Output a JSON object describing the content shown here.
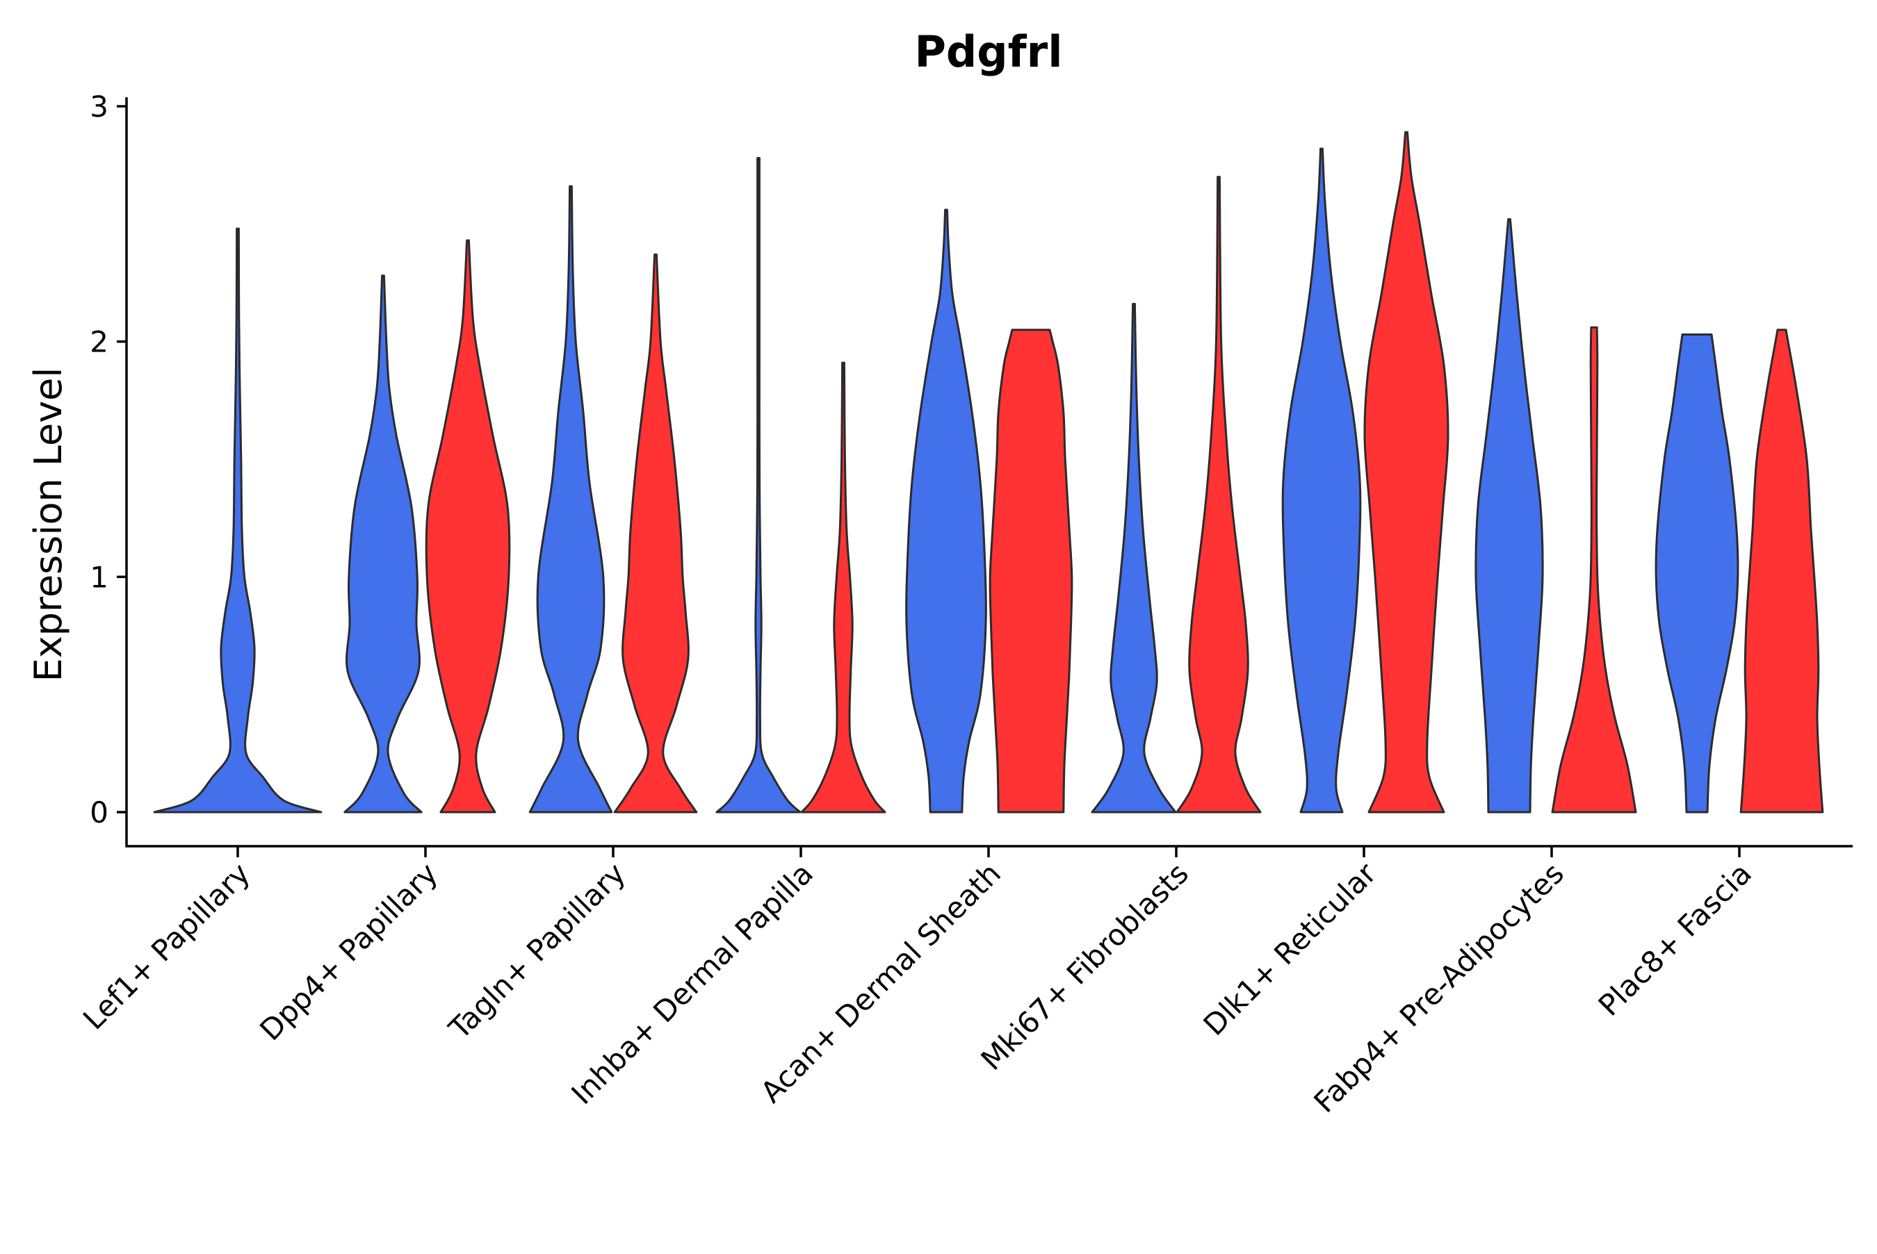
{
  "chart_data": {
    "type": "violin",
    "title": "Pdgfrl",
    "xlabel": "",
    "ylabel": "Expression Level",
    "ylim": [
      -0.15,
      3.05
    ],
    "yticks": [
      "0",
      "1",
      "2",
      "3"
    ],
    "grid": false,
    "legend": "none",
    "group_colors": [
      "#4370eb",
      "#ff3333"
    ],
    "categories": [
      "Lef1+ Papillary",
      "Dpp4+ Papillary",
      "Tagln+ Papillary",
      "Inhba+ Dermal Papilla",
      "Acan+ Dermal Sheath",
      "Mki67+ Fibroblasts",
      "Dlk1+ Reticular",
      "Fabp4+ Pre-Adipocytes",
      "Plac8+ Fascia"
    ],
    "violins": [
      {
        "category": "Lef1+ Papillary",
        "group": 1,
        "max": 2.48,
        "profile": [
          [
            0,
            1.0
          ],
          [
            0.05,
            0.55
          ],
          [
            0.15,
            0.3
          ],
          [
            0.25,
            0.1
          ],
          [
            0.4,
            0.12
          ],
          [
            0.55,
            0.18
          ],
          [
            0.7,
            0.2
          ],
          [
            0.85,
            0.15
          ],
          [
            1.0,
            0.08
          ],
          [
            1.2,
            0.05
          ],
          [
            1.5,
            0.04
          ],
          [
            1.8,
            0.025
          ],
          [
            2.1,
            0.015
          ],
          [
            2.48,
            0.0
          ]
        ]
      },
      {
        "category": "Dpp4+ Papillary",
        "group": 1,
        "max": 2.28,
        "profile": [
          [
            0,
            0.92
          ],
          [
            0.08,
            0.5
          ],
          [
            0.25,
            0.12
          ],
          [
            0.4,
            0.35
          ],
          [
            0.6,
            0.85
          ],
          [
            0.8,
            0.8
          ],
          [
            1.0,
            0.82
          ],
          [
            1.3,
            0.68
          ],
          [
            1.6,
            0.32
          ],
          [
            1.8,
            0.15
          ],
          [
            2.0,
            0.08
          ],
          [
            2.28,
            0.0
          ]
        ]
      },
      {
        "category": "Dpp4+ Papillary",
        "group": 2,
        "max": 2.43,
        "profile": [
          [
            0,
            0.65
          ],
          [
            0.1,
            0.35
          ],
          [
            0.25,
            0.2
          ],
          [
            0.45,
            0.5
          ],
          [
            0.7,
            0.8
          ],
          [
            1.0,
            0.98
          ],
          [
            1.3,
            0.95
          ],
          [
            1.6,
            0.6
          ],
          [
            1.9,
            0.28
          ],
          [
            2.1,
            0.12
          ],
          [
            2.43,
            0.0
          ]
        ]
      },
      {
        "category": "Tagln+ Papillary",
        "group": 1,
        "max": 2.66,
        "profile": [
          [
            0,
            0.98
          ],
          [
            0.1,
            0.7
          ],
          [
            0.3,
            0.18
          ],
          [
            0.5,
            0.4
          ],
          [
            0.7,
            0.72
          ],
          [
            1.0,
            0.78
          ],
          [
            1.4,
            0.45
          ],
          [
            1.7,
            0.3
          ],
          [
            2.0,
            0.12
          ],
          [
            2.3,
            0.05
          ],
          [
            2.66,
            0.0
          ]
        ]
      },
      {
        "category": "Tagln+ Papillary",
        "group": 2,
        "max": 2.37,
        "profile": [
          [
            0,
            0.98
          ],
          [
            0.1,
            0.6
          ],
          [
            0.25,
            0.18
          ],
          [
            0.45,
            0.5
          ],
          [
            0.65,
            0.78
          ],
          [
            0.85,
            0.72
          ],
          [
            1.0,
            0.65
          ],
          [
            1.2,
            0.6
          ],
          [
            1.5,
            0.45
          ],
          [
            1.8,
            0.25
          ],
          [
            2.0,
            0.12
          ],
          [
            2.37,
            0.0
          ]
        ]
      },
      {
        "category": "Inhba+ Dermal Papilla",
        "group": 1,
        "max": 2.78,
        "profile": [
          [
            0,
            1.0
          ],
          [
            0.05,
            0.7
          ],
          [
            0.15,
            0.35
          ],
          [
            0.25,
            0.08
          ],
          [
            0.4,
            0.04
          ],
          [
            0.6,
            0.05
          ],
          [
            0.8,
            0.07
          ],
          [
            1.0,
            0.05
          ],
          [
            1.3,
            0.03
          ],
          [
            1.6,
            0.02
          ],
          [
            2.0,
            0.01
          ],
          [
            2.78,
            0.0
          ]
        ]
      },
      {
        "category": "Inhba+ Dermal Papilla",
        "group": 2,
        "max": 1.91,
        "profile": [
          [
            0,
            1.0
          ],
          [
            0.05,
            0.75
          ],
          [
            0.15,
            0.45
          ],
          [
            0.28,
            0.2
          ],
          [
            0.4,
            0.15
          ],
          [
            0.6,
            0.18
          ],
          [
            0.8,
            0.22
          ],
          [
            1.0,
            0.16
          ],
          [
            1.2,
            0.08
          ],
          [
            1.5,
            0.04
          ],
          [
            1.91,
            0.0
          ]
        ]
      },
      {
        "category": "Acan+ Dermal Sheath",
        "group": 1,
        "max": 2.56,
        "profile": [
          [
            0,
            0.38
          ],
          [
            0.15,
            0.42
          ],
          [
            0.3,
            0.55
          ],
          [
            0.5,
            0.82
          ],
          [
            0.8,
            0.95
          ],
          [
            1.1,
            0.92
          ],
          [
            1.4,
            0.82
          ],
          [
            1.7,
            0.62
          ],
          [
            2.0,
            0.35
          ],
          [
            2.2,
            0.15
          ],
          [
            2.4,
            0.06
          ],
          [
            2.56,
            0.0
          ]
        ]
      },
      {
        "category": "Acan+ Dermal Sheath",
        "group": 2,
        "max": 2.05,
        "profile": [
          [
            0,
            0.78
          ],
          [
            0.2,
            0.8
          ],
          [
            0.4,
            0.86
          ],
          [
            0.6,
            0.92
          ],
          [
            0.8,
            0.96
          ],
          [
            1.0,
            0.98
          ],
          [
            1.2,
            0.92
          ],
          [
            1.5,
            0.82
          ],
          [
            1.7,
            0.78
          ],
          [
            1.9,
            0.65
          ],
          [
            2.0,
            0.52
          ],
          [
            2.05,
            0.45
          ]
        ]
      },
      {
        "category": "Mki67+ Fibroblasts",
        "group": 1,
        "max": 2.16,
        "profile": [
          [
            0,
            1.0
          ],
          [
            0.1,
            0.6
          ],
          [
            0.25,
            0.25
          ],
          [
            0.4,
            0.4
          ],
          [
            0.55,
            0.55
          ],
          [
            0.7,
            0.5
          ],
          [
            0.9,
            0.38
          ],
          [
            1.2,
            0.22
          ],
          [
            1.5,
            0.12
          ],
          [
            1.8,
            0.06
          ],
          [
            2.16,
            0.0
          ]
        ]
      },
      {
        "category": "Mki67+ Fibroblasts",
        "group": 2,
        "max": 2.7,
        "profile": [
          [
            0,
            1.0
          ],
          [
            0.1,
            0.65
          ],
          [
            0.25,
            0.4
          ],
          [
            0.4,
            0.55
          ],
          [
            0.6,
            0.7
          ],
          [
            0.8,
            0.65
          ],
          [
            1.0,
            0.52
          ],
          [
            1.3,
            0.32
          ],
          [
            1.6,
            0.18
          ],
          [
            2.0,
            0.06
          ],
          [
            2.7,
            0.0
          ]
        ]
      },
      {
        "category": "Dlk1+ Reticular",
        "group": 1,
        "max": 2.82,
        "profile": [
          [
            0,
            0.5
          ],
          [
            0.1,
            0.35
          ],
          [
            0.25,
            0.4
          ],
          [
            0.5,
            0.6
          ],
          [
            0.8,
            0.8
          ],
          [
            1.1,
            0.9
          ],
          [
            1.4,
            0.92
          ],
          [
            1.7,
            0.75
          ],
          [
            2.0,
            0.45
          ],
          [
            2.3,
            0.22
          ],
          [
            2.6,
            0.08
          ],
          [
            2.82,
            0.0
          ]
        ]
      },
      {
        "category": "Dlk1+ Reticular",
        "group": 2,
        "max": 2.89,
        "profile": [
          [
            0,
            0.9
          ],
          [
            0.15,
            0.55
          ],
          [
            0.3,
            0.5
          ],
          [
            0.6,
            0.6
          ],
          [
            1.0,
            0.75
          ],
          [
            1.3,
            0.88
          ],
          [
            1.6,
            1.0
          ],
          [
            1.9,
            0.9
          ],
          [
            2.2,
            0.6
          ],
          [
            2.5,
            0.32
          ],
          [
            2.7,
            0.12
          ],
          [
            2.89,
            0.0
          ]
        ]
      },
      {
        "category": "Fabp4+ Pre-Adipocytes",
        "group": 1,
        "max": 2.52,
        "profile": [
          [
            0,
            0.5
          ],
          [
            0.2,
            0.52
          ],
          [
            0.4,
            0.58
          ],
          [
            0.7,
            0.7
          ],
          [
            1.0,
            0.8
          ],
          [
            1.3,
            0.75
          ],
          [
            1.6,
            0.55
          ],
          [
            1.9,
            0.35
          ],
          [
            2.2,
            0.18
          ],
          [
            2.52,
            0.0
          ]
        ]
      },
      {
        "category": "Fabp4+ Pre-Adipocytes",
        "group": 2,
        "max": 2.06,
        "profile": [
          [
            0,
            1.0
          ],
          [
            0.2,
            0.8
          ],
          [
            0.4,
            0.5
          ],
          [
            0.6,
            0.28
          ],
          [
            0.8,
            0.15
          ],
          [
            1.0,
            0.08
          ],
          [
            1.3,
            0.06
          ],
          [
            1.6,
            0.07
          ],
          [
            1.9,
            0.08
          ],
          [
            2.06,
            0.07
          ]
        ]
      },
      {
        "category": "Plac8+ Fascia",
        "group": 1,
        "max": 2.03,
        "profile": [
          [
            0,
            0.25
          ],
          [
            0.2,
            0.3
          ],
          [
            0.4,
            0.45
          ],
          [
            0.6,
            0.7
          ],
          [
            0.8,
            0.9
          ],
          [
            1.0,
            0.98
          ],
          [
            1.2,
            0.95
          ],
          [
            1.5,
            0.78
          ],
          [
            1.7,
            0.6
          ],
          [
            1.9,
            0.45
          ],
          [
            2.03,
            0.35
          ]
        ]
      },
      {
        "category": "Plac8+ Fascia",
        "group": 2,
        "max": 2.05,
        "profile": [
          [
            0,
            0.98
          ],
          [
            0.2,
            0.9
          ],
          [
            0.4,
            0.85
          ],
          [
            0.6,
            0.88
          ],
          [
            0.8,
            0.85
          ],
          [
            1.0,
            0.78
          ],
          [
            1.2,
            0.7
          ],
          [
            1.5,
            0.6
          ],
          [
            1.8,
            0.35
          ],
          [
            2.0,
            0.15
          ],
          [
            2.05,
            0.1
          ]
        ]
      }
    ]
  }
}
